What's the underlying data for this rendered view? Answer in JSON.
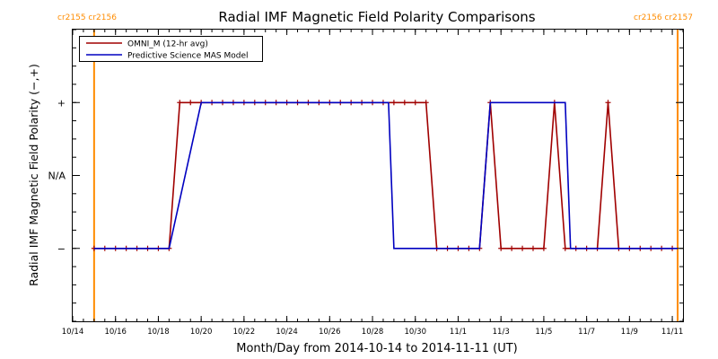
{
  "chart_data": {
    "type": "line",
    "title": "Radial IMF Magnetic Field Polarity Comparisons",
    "xlabel": "Month/Day from 2014-10-14 to 2014-11-11 (UT)",
    "ylabel": "Radial IMF Magnetic Field Polarity (−,+)",
    "xlim": [
      "2014-10-14T00:00",
      "2014-11-11T12:00"
    ],
    "ylim": [
      -2,
      2
    ],
    "x_tick_labels": [
      "10/14",
      "10/16",
      "10/18",
      "10/20",
      "10/22",
      "10/24",
      "10/26",
      "10/28",
      "10/30",
      "11/1",
      "11/3",
      "11/5",
      "11/7",
      "11/9",
      "11/11"
    ],
    "y_ticks": [
      {
        "value": 1,
        "label": "+"
      },
      {
        "value": 0,
        "label": "N/A"
      },
      {
        "value": -1,
        "label": "−"
      }
    ],
    "legend_position": "top-left",
    "carrington_markers": [
      {
        "x": "2014-10-15T00:00",
        "labels": [
          "cr2155",
          "cr2156"
        ],
        "side": "left"
      },
      {
        "x": "2014-11-11T06:00",
        "labels": [
          "cr2156",
          "cr2157"
        ],
        "side": "right"
      }
    ],
    "series": [
      {
        "name": "OMNI_M (12-hr avg)",
        "color": "#a00000",
        "marker": "plus",
        "x": [
          "2014-10-15T00:00",
          "2014-10-15T12:00",
          "2014-10-16T00:00",
          "2014-10-16T12:00",
          "2014-10-17T00:00",
          "2014-10-17T12:00",
          "2014-10-18T00:00",
          "2014-10-18T12:00",
          "2014-10-19T00:00",
          "2014-10-19T12:00",
          "2014-10-20T00:00",
          "2014-10-20T12:00",
          "2014-10-21T00:00",
          "2014-10-21T12:00",
          "2014-10-22T00:00",
          "2014-10-22T12:00",
          "2014-10-23T00:00",
          "2014-10-23T12:00",
          "2014-10-24T00:00",
          "2014-10-24T12:00",
          "2014-10-25T00:00",
          "2014-10-25T12:00",
          "2014-10-26T00:00",
          "2014-10-26T12:00",
          "2014-10-27T00:00",
          "2014-10-27T12:00",
          "2014-10-28T00:00",
          "2014-10-28T12:00",
          "2014-10-29T00:00",
          "2014-10-29T12:00",
          "2014-10-30T00:00",
          "2014-10-30T12:00",
          "2014-10-31T00:00",
          "2014-10-31T12:00",
          "2014-11-01T00:00",
          "2014-11-01T12:00",
          "2014-11-02T00:00",
          "2014-11-02T12:00",
          "2014-11-03T00:00",
          "2014-11-03T12:00",
          "2014-11-04T00:00",
          "2014-11-04T12:00",
          "2014-11-05T00:00",
          "2014-11-05T12:00",
          "2014-11-06T00:00",
          "2014-11-06T12:00",
          "2014-11-07T00:00",
          "2014-11-07T12:00",
          "2014-11-08T00:00",
          "2014-11-08T12:00",
          "2014-11-09T00:00",
          "2014-11-09T12:00",
          "2014-11-10T00:00",
          "2014-11-10T12:00",
          "2014-11-11T00:00"
        ],
        "y": [
          -1,
          -1,
          -1,
          -1,
          -1,
          -1,
          -1,
          -1,
          1,
          1,
          1,
          1,
          1,
          1,
          1,
          1,
          1,
          1,
          1,
          1,
          1,
          1,
          1,
          1,
          1,
          1,
          1,
          1,
          1,
          1,
          1,
          1,
          -1,
          -1,
          -1,
          -1,
          -1,
          1,
          -1,
          -1,
          -1,
          -1,
          -1,
          1,
          -1,
          -1,
          -1,
          -1,
          1,
          -1,
          -1,
          -1,
          -1,
          -1,
          -1
        ]
      },
      {
        "name": "Predictive Science MAS Model",
        "color": "#0000c0",
        "marker": "none",
        "x": [
          "2014-10-15T00:00",
          "2014-10-18T12:00",
          "2014-10-20T00:00",
          "2014-10-28T18:00",
          "2014-10-29T00:00",
          "2014-11-02T00:00",
          "2014-11-02T12:00",
          "2014-11-06T00:00",
          "2014-11-06T06:00",
          "2014-11-11T06:00"
        ],
        "y": [
          -1,
          -1,
          1,
          1,
          -1,
          -1,
          1,
          1,
          -1,
          -1
        ]
      }
    ]
  }
}
